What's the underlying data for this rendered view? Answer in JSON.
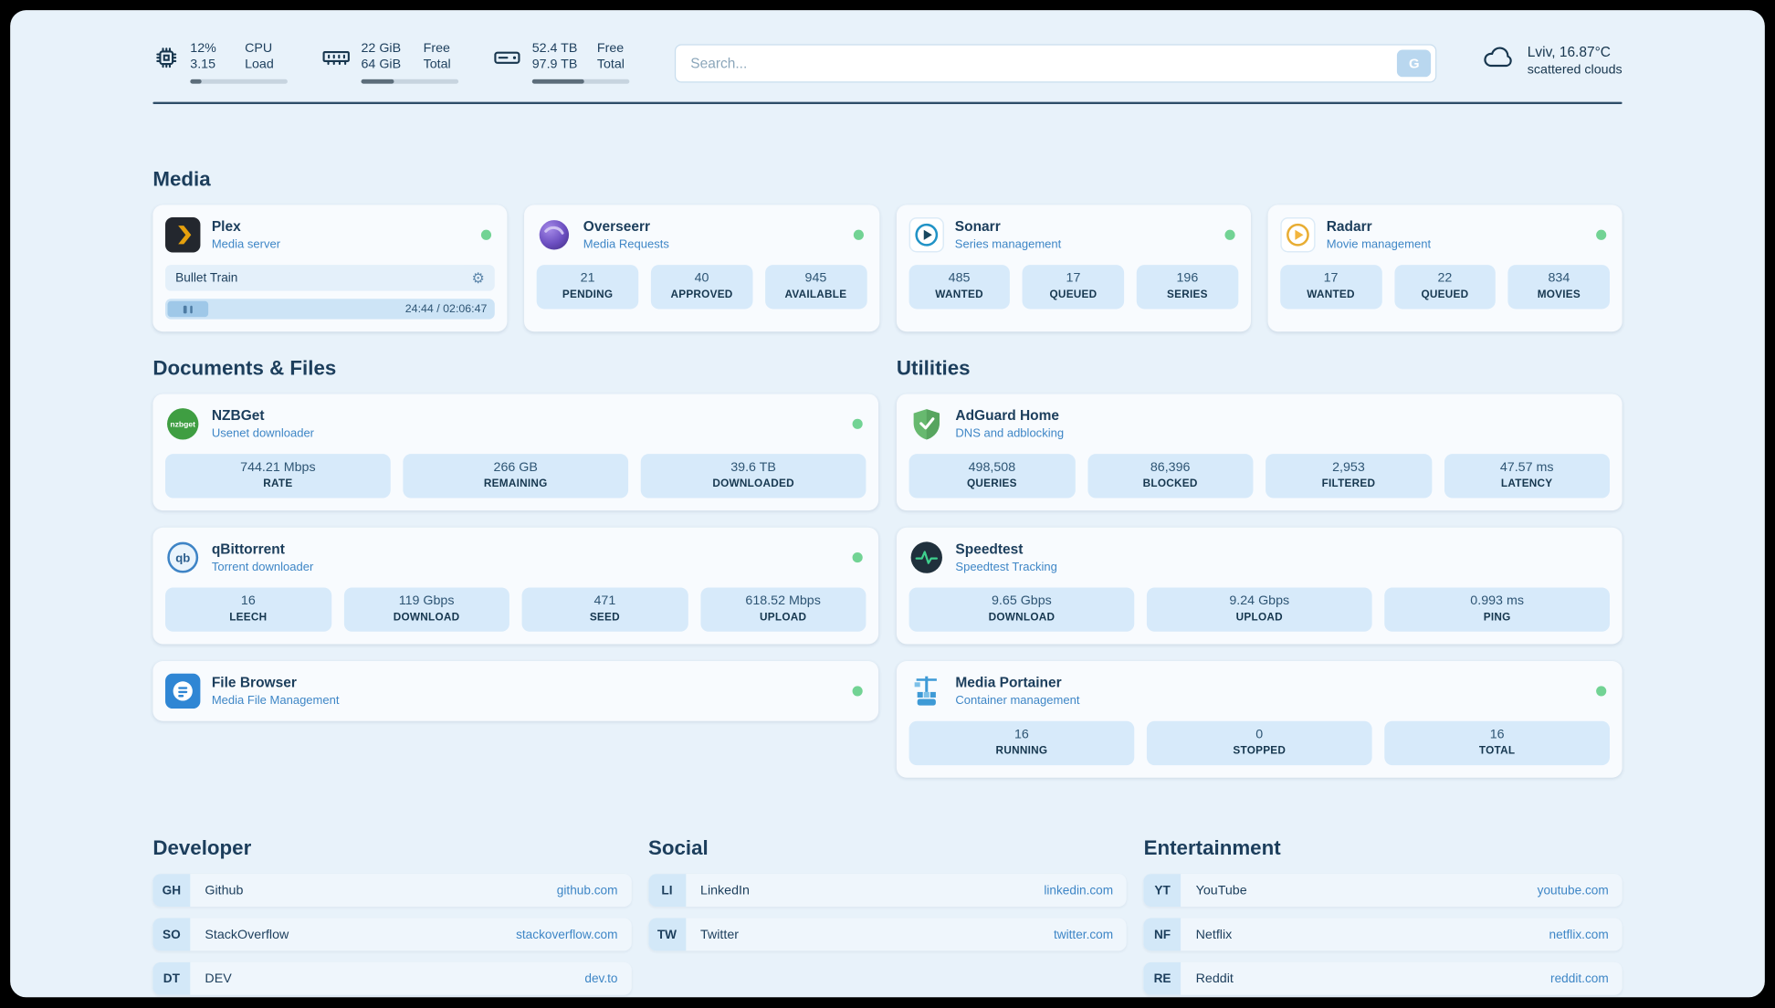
{
  "topbar": {
    "cpu": {
      "value_top": "12%",
      "value_bottom": "3.15",
      "label_top": "CPU",
      "label_bottom": "Load",
      "pct": 12
    },
    "ram": {
      "value_top": "22 GiB",
      "value_bottom": "64 GiB",
      "label_top": "Free",
      "label_bottom": "Total",
      "pct": 34
    },
    "disk": {
      "value_top": "52.4 TB",
      "value_bottom": "97.9 TB",
      "label_top": "Free",
      "label_bottom": "Total",
      "pct": 54
    },
    "search": {
      "placeholder": "Search...",
      "button_label": "G"
    },
    "weather": {
      "location": "Lviv, 16.87°C",
      "condition": "scattered clouds"
    }
  },
  "media": {
    "title": "Media",
    "plex": {
      "name": "Plex",
      "subtitle": "Media server",
      "now_playing": "Bullet Train",
      "time": "24:44 / 02:06:47"
    },
    "overseerr": {
      "name": "Overseerr",
      "subtitle": "Media Requests",
      "stats": [
        {
          "value": "21",
          "label": "PENDING"
        },
        {
          "value": "40",
          "label": "APPROVED"
        },
        {
          "value": "945",
          "label": "AVAILABLE"
        }
      ]
    },
    "sonarr": {
      "name": "Sonarr",
      "subtitle": "Series management",
      "stats": [
        {
          "value": "485",
          "label": "WANTED"
        },
        {
          "value": "17",
          "label": "QUEUED"
        },
        {
          "value": "196",
          "label": "SERIES"
        }
      ]
    },
    "radarr": {
      "name": "Radarr",
      "subtitle": "Movie management",
      "stats": [
        {
          "value": "17",
          "label": "WANTED"
        },
        {
          "value": "22",
          "label": "QUEUED"
        },
        {
          "value": "834",
          "label": "MOVIES"
        }
      ]
    }
  },
  "documents": {
    "title": "Documents & Files",
    "nzbget": {
      "name": "NZBGet",
      "subtitle": "Usenet downloader",
      "icon_text": "nzbget",
      "stats": [
        {
          "value": "744.21 Mbps",
          "label": "RATE"
        },
        {
          "value": "266 GB",
          "label": "REMAINING"
        },
        {
          "value": "39.6 TB",
          "label": "DOWNLOADED"
        }
      ]
    },
    "qbittorrent": {
      "name": "qBittorrent",
      "subtitle": "Torrent downloader",
      "icon_text": "qb",
      "stats": [
        {
          "value": "16",
          "label": "LEECH"
        },
        {
          "value": "119 Gbps",
          "label": "DOWNLOAD"
        },
        {
          "value": "471",
          "label": "SEED"
        },
        {
          "value": "618.52 Mbps",
          "label": "UPLOAD"
        }
      ]
    },
    "filebrowser": {
      "name": "File Browser",
      "subtitle": "Media File Management"
    }
  },
  "utilities": {
    "title": "Utilities",
    "adguard": {
      "name": "AdGuard Home",
      "subtitle": "DNS and adblocking",
      "stats": [
        {
          "value": "498,508",
          "label": "QUERIES"
        },
        {
          "value": "86,396",
          "label": "BLOCKED"
        },
        {
          "value": "2,953",
          "label": "FILTERED"
        },
        {
          "value": "47.57 ms",
          "label": "LATENCY"
        }
      ]
    },
    "speedtest": {
      "name": "Speedtest",
      "subtitle": "Speedtest Tracking",
      "stats": [
        {
          "value": "9.65 Gbps",
          "label": "DOWNLOAD"
        },
        {
          "value": "9.24 Gbps",
          "label": "UPLOAD"
        },
        {
          "value": "0.993 ms",
          "label": "PING"
        }
      ]
    },
    "portainer": {
      "name": "Media Portainer",
      "subtitle": "Container management",
      "stats": [
        {
          "value": "16",
          "label": "RUNNING"
        },
        {
          "value": "0",
          "label": "STOPPED"
        },
        {
          "value": "16",
          "label": "TOTAL"
        }
      ]
    }
  },
  "bookmarks": {
    "developer": {
      "title": "Developer",
      "items": [
        {
          "abbr": "GH",
          "name": "Github",
          "url": "github.com"
        },
        {
          "abbr": "SO",
          "name": "StackOverflow",
          "url": "stackoverflow.com"
        },
        {
          "abbr": "DT",
          "name": "DEV",
          "url": "dev.to"
        }
      ]
    },
    "social": {
      "title": "Social",
      "items": [
        {
          "abbr": "LI",
          "name": "LinkedIn",
          "url": "linkedin.com"
        },
        {
          "abbr": "TW",
          "name": "Twitter",
          "url": "twitter.com"
        }
      ]
    },
    "entertainment": {
      "title": "Entertainment",
      "items": [
        {
          "abbr": "YT",
          "name": "YouTube",
          "url": "youtube.com"
        },
        {
          "abbr": "NF",
          "name": "Netflix",
          "url": "netflix.com"
        },
        {
          "abbr": "RE",
          "name": "Reddit",
          "url": "reddit.com"
        }
      ]
    }
  }
}
